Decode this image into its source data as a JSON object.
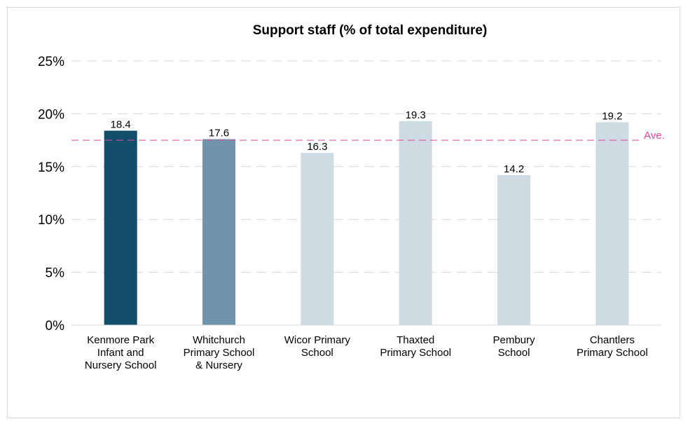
{
  "chart_data": {
    "type": "bar",
    "title": "Support staff (% of total expenditure)",
    "categories": [
      [
        "Kenmore Park",
        "Infant and",
        "Nursery School"
      ],
      [
        "Whitchurch",
        "Primary School",
        "& Nursery"
      ],
      [
        "Wicor Primary",
        "School"
      ],
      [
        "Thaxted",
        "Primary School"
      ],
      [
        "Pembury",
        "School"
      ],
      [
        "Chantlers",
        "Primary School"
      ]
    ],
    "values": [
      18.4,
      17.6,
      16.3,
      19.3,
      14.2,
      19.2
    ],
    "data_labels": [
      "18.4",
      "17.6",
      "16.3",
      "19.3",
      "14.2",
      "19.2"
    ],
    "bar_colors": [
      "#124d6a",
      "#7094ac",
      "#cfdbe3",
      "#cfdbe3",
      "#cfdbe3",
      "#cfdbe3"
    ],
    "ylim": [
      0,
      25
    ],
    "yticks": [
      0,
      5,
      10,
      15,
      20,
      25
    ],
    "ytick_labels": [
      "0%",
      "5%",
      "10%",
      "15%",
      "20%",
      "25%"
    ],
    "reference_line": {
      "label": "Ave.",
      "value": 17.5,
      "color": "#e8469a"
    },
    "grid": true,
    "grid_color": "#d9d9d9",
    "xlabel": "",
    "ylabel": ""
  }
}
